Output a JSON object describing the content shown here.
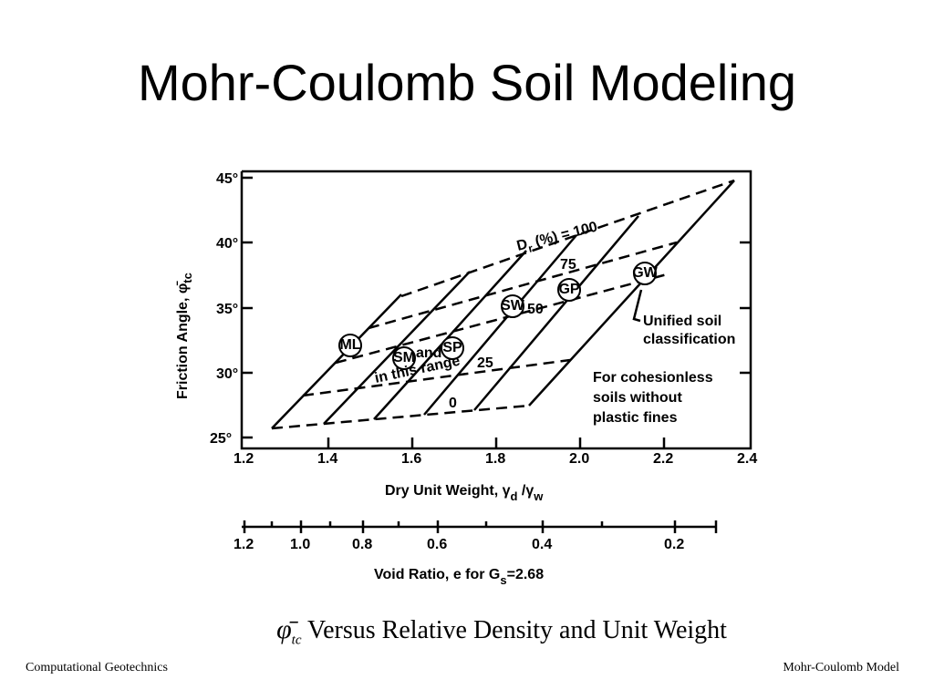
{
  "title": "Mohr-Coulomb Soil Modeling",
  "figure": {
    "y_label": "Friction Angle, ",
    "y_label_symbol": "φ̄",
    "y_label_sub": "tc",
    "y_ticks": [
      "45°",
      "40°",
      "35°",
      "30°",
      "25°"
    ],
    "x_ticks": [
      "1.2",
      "1.4",
      "1.6",
      "1.8",
      "2.0",
      "2.2",
      "2.4"
    ],
    "x_label": "Dry Unit Weight, γ",
    "x_label_sub1": "d",
    "x_label_mid": " /γ",
    "x_label_sub2": "w",
    "void_ticks": [
      "1.2",
      "1.0",
      "0.8",
      "0.6",
      "0.4",
      "0.2"
    ],
    "void_label": "Void Ratio, e  for  G",
    "void_label_sub": "s",
    "void_label_tail": "=2.68",
    "density_label": "D",
    "density_label_sub": "r",
    "density_label_tail": " (%) = 100",
    "density_values": [
      "75",
      "50",
      "25",
      "0"
    ],
    "soils": [
      "ML",
      "SM",
      "SP",
      "SW",
      "GP",
      "GW"
    ],
    "range_note": [
      "and",
      "in this range"
    ],
    "unified_note": [
      "Unified soil",
      "classification"
    ],
    "cohesionless_note": [
      "For cohesionless",
      "soils without",
      "plastic fines"
    ]
  },
  "caption": {
    "symbol": "φ̄",
    "sub": "tc",
    "text": " Versus Relative Density and Unit Weight"
  },
  "footer": {
    "left": "Computational Geotechnics",
    "right": "Mohr-Coulomb Model"
  }
}
